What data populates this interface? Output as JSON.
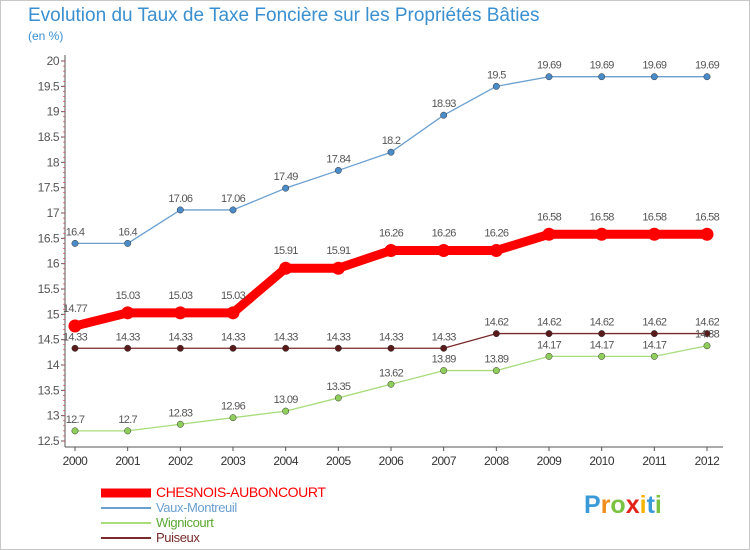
{
  "chart_data": {
    "type": "line",
    "title": "Evolution du Taux de Taxe Foncière sur les Propriétés Bâties",
    "subtitle": "(en %)",
    "xlabel": "",
    "ylabel": "",
    "x": [
      "2000",
      "2001",
      "2002",
      "2003",
      "2004",
      "2005",
      "2006",
      "2007",
      "2008",
      "2009",
      "2010",
      "2011",
      "2012"
    ],
    "ylim": [
      12.5,
      20
    ],
    "yticks": [
      "12.5",
      "13",
      "13.5",
      "14",
      "14.5",
      "15",
      "15.5",
      "16",
      "16.5",
      "17",
      "17.5",
      "18",
      "18.5",
      "19",
      "19.5",
      "20"
    ],
    "grid": false,
    "legend_position": "bottom-left",
    "series": [
      {
        "name": "CHESNOIS-AUBONCOURT",
        "color": "#ff0000",
        "marker_color": "#ff0000",
        "values": [
          14.77,
          15.03,
          15.03,
          15.03,
          15.91,
          15.91,
          16.26,
          16.26,
          16.26,
          16.58,
          16.58,
          16.58,
          16.58
        ],
        "labels": [
          "14.77",
          "15.03",
          "15.03",
          "15.03",
          "15.91",
          "15.91",
          "16.26",
          "16.26",
          "16.26",
          "16.58",
          "16.58",
          "16.58",
          "16.58"
        ]
      },
      {
        "name": "Vaux-Montreuil",
        "color": "#6a9fd0",
        "marker_color": "#4a8bc9",
        "values": [
          16.4,
          16.4,
          17.06,
          17.06,
          17.49,
          17.84,
          18.2,
          18.93,
          19.5,
          19.69,
          19.69,
          19.69,
          19.69
        ],
        "labels": [
          "16.4",
          "16.4",
          "17.06",
          "17.06",
          "17.49",
          "17.84",
          "18.2",
          "18.93",
          "19.5",
          "19.69",
          "19.69",
          "19.69",
          "19.69"
        ]
      },
      {
        "name": "Wignicourt",
        "color": "#a8dc7c",
        "marker_color": "#8fce5a",
        "values": [
          12.7,
          12.7,
          12.83,
          12.96,
          13.09,
          13.35,
          13.62,
          13.89,
          13.89,
          14.17,
          14.17,
          14.17,
          14.38
        ],
        "labels": [
          "12.7",
          "12.7",
          "12.83",
          "12.96",
          "13.09",
          "13.35",
          "13.62",
          "13.89",
          "13.89",
          "14.17",
          "14.17",
          "14.17",
          "14.38"
        ]
      },
      {
        "name": "Puiseux",
        "color": "#7a2a2a",
        "marker_color": "#5a1a1a",
        "values": [
          14.33,
          14.33,
          14.33,
          14.33,
          14.33,
          14.33,
          14.33,
          14.33,
          14.62,
          14.62,
          14.62,
          14.62,
          14.62
        ],
        "labels": [
          "14.33",
          "14.33",
          "14.33",
          "14.33",
          "14.33",
          "14.33",
          "14.33",
          "14.33",
          "14.62",
          "14.62",
          "14.62",
          "14.62",
          "14.62"
        ]
      }
    ]
  },
  "logo": {
    "letters": [
      "P",
      "r",
      "o",
      "x",
      "i",
      "t",
      "i"
    ]
  }
}
